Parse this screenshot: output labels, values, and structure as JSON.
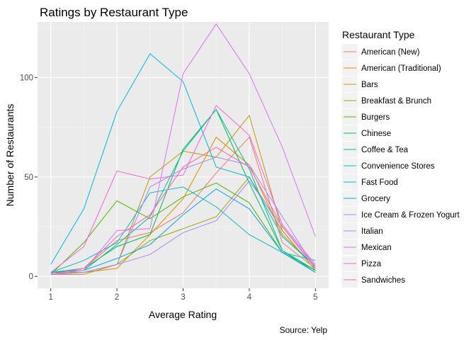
{
  "chart_data": {
    "type": "line",
    "title": "Ratings by Restaurant Type",
    "xlabel": "Average Rating",
    "ylabel": "Number of Restaurants",
    "caption": "Source: Yelp",
    "legend_title": "Restaurant Type",
    "legend_position": "right",
    "grid": true,
    "x": [
      1,
      1.5,
      2,
      2.5,
      3,
      3.5,
      4,
      4.5,
      5
    ],
    "xlim": [
      0.8,
      5.2
    ],
    "ylim": [
      -6,
      128
    ],
    "x_ticks": [
      1,
      2,
      3,
      4,
      5
    ],
    "y_ticks": [
      0,
      50,
      100
    ],
    "series": [
      {
        "name": "American (New)",
        "color": "#F8766D",
        "values": [
          1,
          4,
          18,
          22,
          32,
          52,
          70,
          17,
          4
        ]
      },
      {
        "name": "American (Traditional)",
        "color": "#E38900",
        "values": [
          2,
          2,
          4,
          21,
          39,
          70,
          56,
          21,
          5
        ]
      },
      {
        "name": "Bars",
        "color": "#C49A00",
        "values": [
          1,
          1,
          6,
          50,
          63,
          60,
          81,
          23,
          3
        ]
      },
      {
        "name": "Breakfast & Brunch",
        "color": "#99A800",
        "values": [
          1,
          2,
          6,
          18,
          24,
          30,
          50,
          23,
          3
        ]
      },
      {
        "name": "Burgers",
        "color": "#53B400",
        "values": [
          1,
          17,
          38,
          29,
          40,
          47,
          37,
          12,
          3
        ]
      },
      {
        "name": "Chinese",
        "color": "#00BC56",
        "values": [
          2,
          4,
          15,
          21,
          64,
          84,
          47,
          13,
          3
        ]
      },
      {
        "name": "Coffee & Tea",
        "color": "#00C094",
        "values": [
          1,
          3,
          16,
          30,
          63,
          84,
          54,
          13,
          2
        ]
      },
      {
        "name": "Convenience Stores",
        "color": "#00BFC4",
        "values": [
          2,
          8,
          17,
          42,
          45,
          35,
          21,
          12,
          8
        ]
      },
      {
        "name": "Fast Food",
        "color": "#00B6EB",
        "values": [
          6,
          34,
          83,
          112,
          98,
          55,
          50,
          20,
          5
        ]
      },
      {
        "name": "Grocery",
        "color": "#06A4FF",
        "values": [
          2,
          3,
          9,
          16,
          31,
          44,
          34,
          12,
          2
        ]
      },
      {
        "name": "Ice Cream & Frozen Yogurt",
        "color": "#A58AFF",
        "values": [
          1,
          2,
          6,
          11,
          22,
          28,
          48,
          25,
          4
        ]
      },
      {
        "name": "Italian",
        "color": "#A58AFF",
        "values": [
          1,
          2,
          6,
          45,
          54,
          60,
          56,
          30,
          4
        ]
      },
      {
        "name": "Mexican",
        "color": "#DF70F8",
        "values": [
          1,
          3,
          23,
          24,
          102,
          127,
          102,
          65,
          20
        ]
      },
      {
        "name": "Pizza",
        "color": "#FB61D7",
        "values": [
          2,
          15,
          53,
          49,
          51,
          86,
          71,
          26,
          6
        ]
      },
      {
        "name": "Sandwiches",
        "color": "#FF66A8",
        "values": [
          1,
          4,
          20,
          31,
          55,
          65,
          55,
          25,
          5
        ]
      }
    ]
  }
}
